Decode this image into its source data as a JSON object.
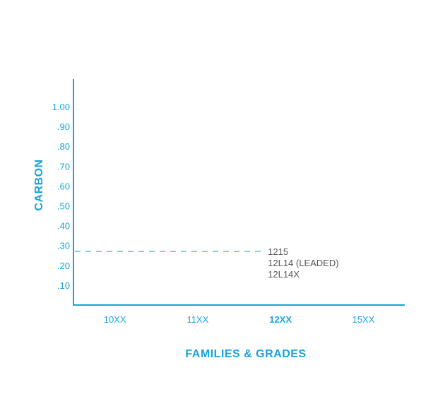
{
  "colors": {
    "accent": "#1aa3dc",
    "annotation_text": "#555555",
    "background": "#ffffff"
  },
  "chart_data": {
    "type": "bar",
    "xlabel": "FAMILIES & GRADES",
    "ylabel": "CARBON",
    "categories": [
      "10XX",
      "11XX",
      "12XX",
      "15XX"
    ],
    "highlighted_category": "12XX",
    "y_ticks": [
      {
        "value": 1.0,
        "label": "1.00"
      },
      {
        "value": 0.9,
        "label": ".90"
      },
      {
        "value": 0.8,
        "label": ".80"
      },
      {
        "value": 0.7,
        "label": ".70"
      },
      {
        "value": 0.6,
        "label": ".60"
      },
      {
        "value": 0.5,
        "label": ".50"
      },
      {
        "value": 0.4,
        "label": ".40"
      },
      {
        "value": 0.3,
        "label": ".30"
      },
      {
        "value": 0.2,
        "label": ".20"
      },
      {
        "value": 0.1,
        "label": ".10"
      }
    ],
    "ylim": [
      0,
      1.1
    ],
    "grid": false,
    "annotations": [
      {
        "category": "12XX",
        "carbon": 0.27,
        "reference_line": "dashed",
        "lines": [
          "1215",
          "12L14 (LEADED)",
          "12L14X"
        ]
      }
    ]
  }
}
